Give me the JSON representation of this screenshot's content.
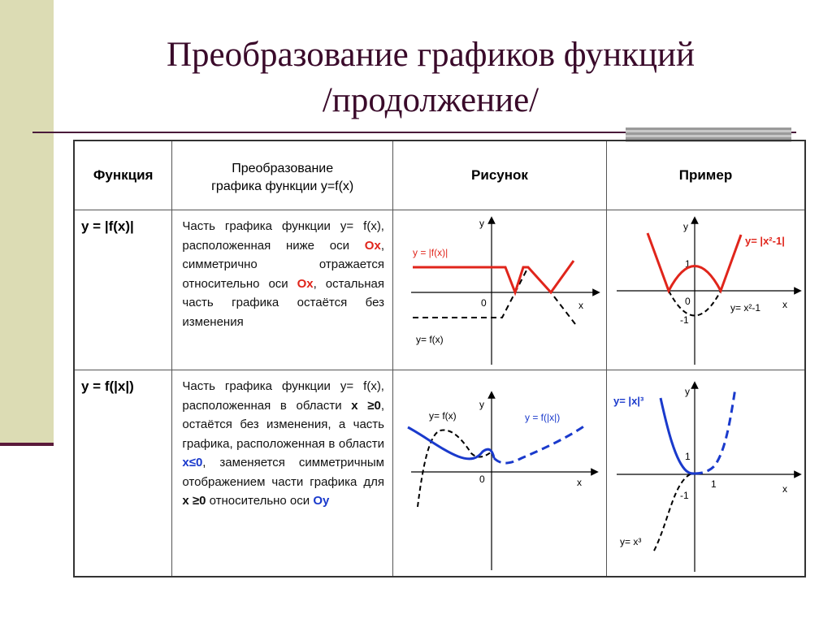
{
  "title": {
    "line1": "Преобразование графиков функций",
    "line2": "/продолжение/"
  },
  "table": {
    "headers": {
      "function": "Функция",
      "transform_line1": "Преобразование",
      "transform_line2": "графика функции y=f(x)",
      "figure": "Рисунок",
      "example": "Пример"
    },
    "rows": [
      {
        "function": "y = |f(x)|",
        "desc": {
          "p1": "Часть графика функции y= f(x), расположенная ниже оси ",
          "k1": "Ox",
          "p2": ", симметрично отражается относительно оси ",
          "k2": "Ox",
          "p3": ", остальная часть графика остаётся без изменения"
        },
        "figure": {
          "label_y": "y",
          "label_x": "x",
          "label_origin": "0",
          "label_transformed": "y = |f(x)|",
          "label_original": "y= f(x)"
        },
        "example": {
          "label_y": "y",
          "label_x": "x",
          "label_origin": "0",
          "label_one": "1",
          "label_minus_one": "-1",
          "label_transformed": "y= |x²-1|",
          "label_original": "y= x²-1"
        }
      },
      {
        "function": "y = f(|x|)",
        "desc": {
          "p1": "Часть графика функции y= f(x), расположенная в области ",
          "k1": "x ≥0",
          "p2": ", остаётся без изменения, а часть графика, расположенная в области ",
          "k2": "x≤0",
          "p3": ", заменяется симметричным отображением части графика для ",
          "k3": "x ≥0",
          "p4": " относительно оси ",
          "k4": "Oy"
        },
        "figure": {
          "label_y": "y",
          "label_x": "x",
          "label_origin": "0",
          "label_original": "y= f(x)",
          "label_transformed": "y = f(|x|)"
        },
        "example": {
          "label_y": "y",
          "label_x": "x",
          "label_one_y": "1",
          "label_one_x": "1",
          "label_minus_one": "-1",
          "label_transformed": "y= |x|³",
          "label_original": "y= x³"
        }
      }
    ]
  },
  "colors": {
    "red": "#e0251b",
    "blue": "#1a3acc",
    "title": "#3a0a2a",
    "sidebar": "#dcdcb4"
  }
}
